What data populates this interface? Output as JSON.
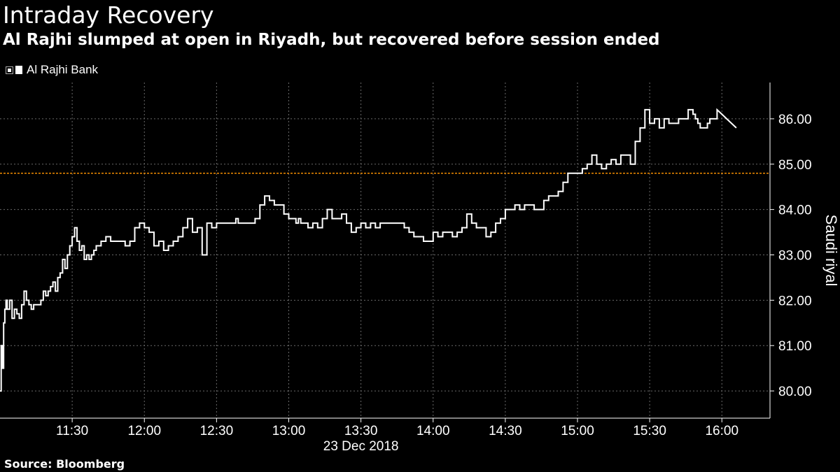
{
  "header": {
    "title": "Intraday Recovery",
    "subtitle": "Al Rajhi slumped at open in Riyadh, but recovered before session ended"
  },
  "footer": {
    "source": "Source: Bloomberg"
  },
  "chart_data": {
    "type": "line",
    "ylabel": "Saudi riyal",
    "xlabel": "23 Dec 2018",
    "x_tick_labels": [
      "11:30",
      "12:00",
      "12:30",
      "13:00",
      "13:30",
      "14:00",
      "14:30",
      "15:00",
      "15:30",
      "16:00"
    ],
    "x_tick_minutes": [
      690,
      720,
      750,
      780,
      810,
      840,
      870,
      900,
      930,
      960
    ],
    "xlim_minutes": [
      660,
      980
    ],
    "y_ticks": [
      80,
      81,
      82,
      83,
      84,
      85,
      86
    ],
    "y_tick_labels": [
      "80.00",
      "81.00",
      "82.00",
      "83.00",
      "84.00",
      "85.00",
      "86.00"
    ],
    "ylim": [
      79.4,
      86.8
    ],
    "grid": true,
    "legend_position": "top-left",
    "reference_line": {
      "value": 84.8,
      "color": "#f08c00"
    },
    "series": [
      {
        "name": "Al Rajhi Bank",
        "color": "#ffffff",
        "x_minutes": [
          660,
          660.5,
          661,
          661.5,
          662,
          662.5,
          663,
          664,
          665,
          666,
          667,
          668,
          669,
          670,
          671,
          672,
          673,
          674,
          675,
          676,
          677,
          678,
          679,
          680,
          681,
          682,
          683,
          684,
          685,
          686,
          687,
          688,
          689,
          690,
          691,
          692,
          693,
          694,
          695,
          696,
          697,
          698,
          699,
          700,
          702,
          704,
          706,
          708,
          710,
          712,
          714,
          716,
          718,
          720,
          722,
          724,
          726,
          728,
          730,
          732,
          734,
          736,
          738,
          740,
          742,
          744,
          746,
          748,
          750,
          752,
          754,
          756,
          757,
          758,
          759,
          760,
          762,
          764,
          766,
          768,
          770,
          772,
          774,
          776,
          778,
          780,
          782,
          783,
          784,
          785,
          786,
          788,
          790,
          792,
          794,
          796,
          798,
          800,
          802,
          804,
          806,
          808,
          810,
          812,
          814,
          816,
          818,
          820,
          822,
          824,
          826,
          828,
          830,
          832,
          834,
          836,
          838,
          840,
          842,
          844,
          846,
          848,
          850,
          852,
          854,
          856,
          858,
          860,
          862,
          864,
          866,
          868,
          870,
          872,
          874,
          876,
          878,
          880,
          882,
          884,
          886,
          888,
          890,
          892,
          894,
          896,
          898,
          900,
          902,
          904,
          906,
          908,
          910,
          912,
          914,
          916,
          918,
          920,
          922,
          924,
          926,
          928,
          930,
          932,
          934,
          936,
          938,
          940,
          942,
          944,
          946,
          948,
          949,
          950,
          951,
          952,
          953,
          954,
          955,
          956,
          958,
          960,
          962,
          964,
          966
        ],
        "values": [
          80.0,
          81.0,
          80.5,
          81.5,
          81.8,
          82.0,
          81.8,
          82.0,
          81.6,
          81.8,
          81.7,
          81.6,
          81.9,
          82.2,
          82.0,
          81.9,
          81.8,
          81.9,
          81.9,
          81.9,
          82.0,
          82.2,
          82.1,
          82.2,
          82.3,
          82.4,
          82.2,
          82.5,
          82.6,
          82.9,
          82.7,
          83.0,
          83.2,
          83.4,
          83.6,
          83.3,
          83.1,
          83.2,
          82.9,
          83.0,
          82.9,
          83.0,
          83.1,
          83.2,
          83.3,
          83.4,
          83.3,
          83.3,
          83.3,
          83.2,
          83.3,
          83.6,
          83.7,
          83.6,
          83.5,
          83.2,
          83.3,
          83.1,
          83.2,
          83.3,
          83.4,
          83.6,
          83.8,
          83.5,
          83.6,
          83.0,
          83.7,
          83.6,
          83.7,
          83.7,
          83.7,
          83.7,
          83.7,
          83.8,
          83.7,
          83.7,
          83.7,
          83.7,
          83.8,
          84.1,
          84.3,
          84.2,
          84.1,
          84.1,
          83.9,
          83.8,
          83.8,
          83.7,
          83.8,
          83.7,
          83.7,
          83.6,
          83.7,
          83.6,
          83.8,
          84.0,
          83.8,
          83.8,
          83.9,
          83.7,
          83.5,
          83.6,
          83.7,
          83.6,
          83.7,
          83.6,
          83.7,
          83.7,
          83.7,
          83.7,
          83.7,
          83.6,
          83.5,
          83.4,
          83.4,
          83.3,
          83.3,
          83.5,
          83.4,
          83.5,
          83.5,
          83.4,
          83.5,
          83.6,
          83.9,
          83.7,
          83.6,
          83.6,
          83.4,
          83.5,
          83.7,
          83.8,
          84.0,
          84.0,
          84.1,
          84.0,
          84.1,
          84.1,
          84.0,
          84.0,
          84.2,
          84.3,
          84.3,
          84.4,
          84.6,
          84.8,
          84.8,
          84.8,
          84.9,
          85.0,
          85.2,
          85.0,
          84.9,
          85.0,
          85.1,
          85.0,
          85.2,
          85.2,
          85.0,
          85.5,
          85.8,
          86.2,
          85.9,
          86.0,
          85.8,
          86.0,
          85.9,
          85.9,
          86.0,
          86.0,
          86.2,
          86.1,
          86.0,
          85.9,
          85.8,
          85.8,
          85.8,
          85.9,
          86.0,
          86.0,
          86.2,
          86.1,
          86.0,
          85.9,
          85.8
        ]
      }
    ]
  }
}
